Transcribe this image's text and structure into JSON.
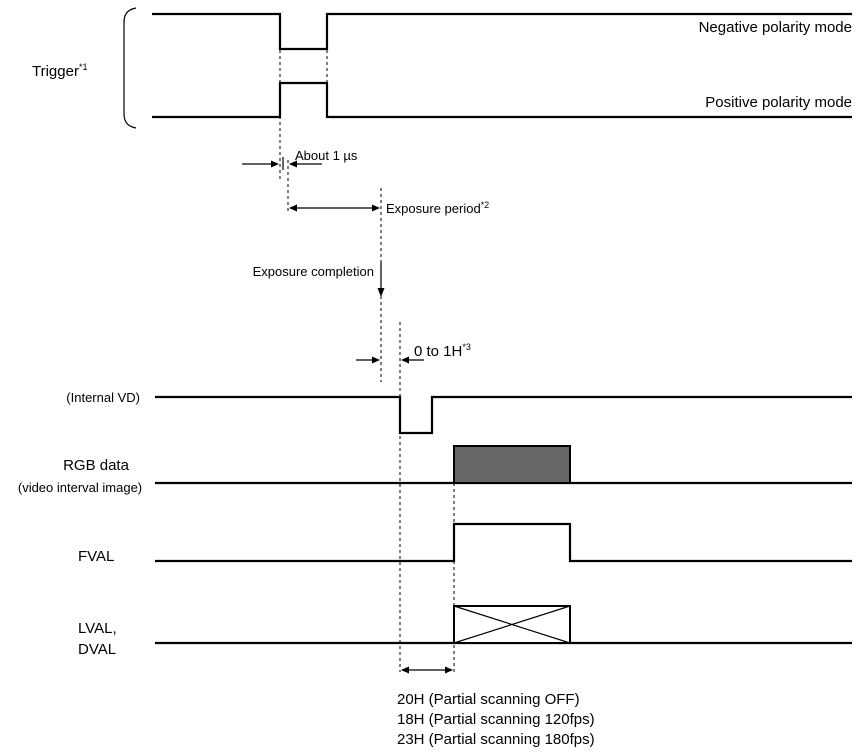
{
  "trigger": {
    "label": "Trigger",
    "label_note": "*1",
    "negative_mode": "Negative polarity mode",
    "positive_mode": "Positive polarity mode"
  },
  "timing": {
    "about_1us": "About 1 µs",
    "exposure_period": "Exposure period",
    "exposure_period_note": "*2",
    "exposure_completion": "Exposure completion",
    "zero_to_1h": "0 to 1H",
    "zero_to_1h_note": "*3"
  },
  "signals": {
    "internal_vd": "(Internal VD)",
    "rgb_data": "RGB data",
    "rgb_data_sub": "(video interval image)",
    "fval": "FVAL",
    "lval": "LVAL,",
    "dval": "DVAL"
  },
  "delay_notes": [
    "20H (Partial scanning OFF)",
    "18H (Partial scanning 120fps)",
    "23H (Partial scanning 180fps)"
  ],
  "colors": {
    "rgb_block": "#666666"
  }
}
